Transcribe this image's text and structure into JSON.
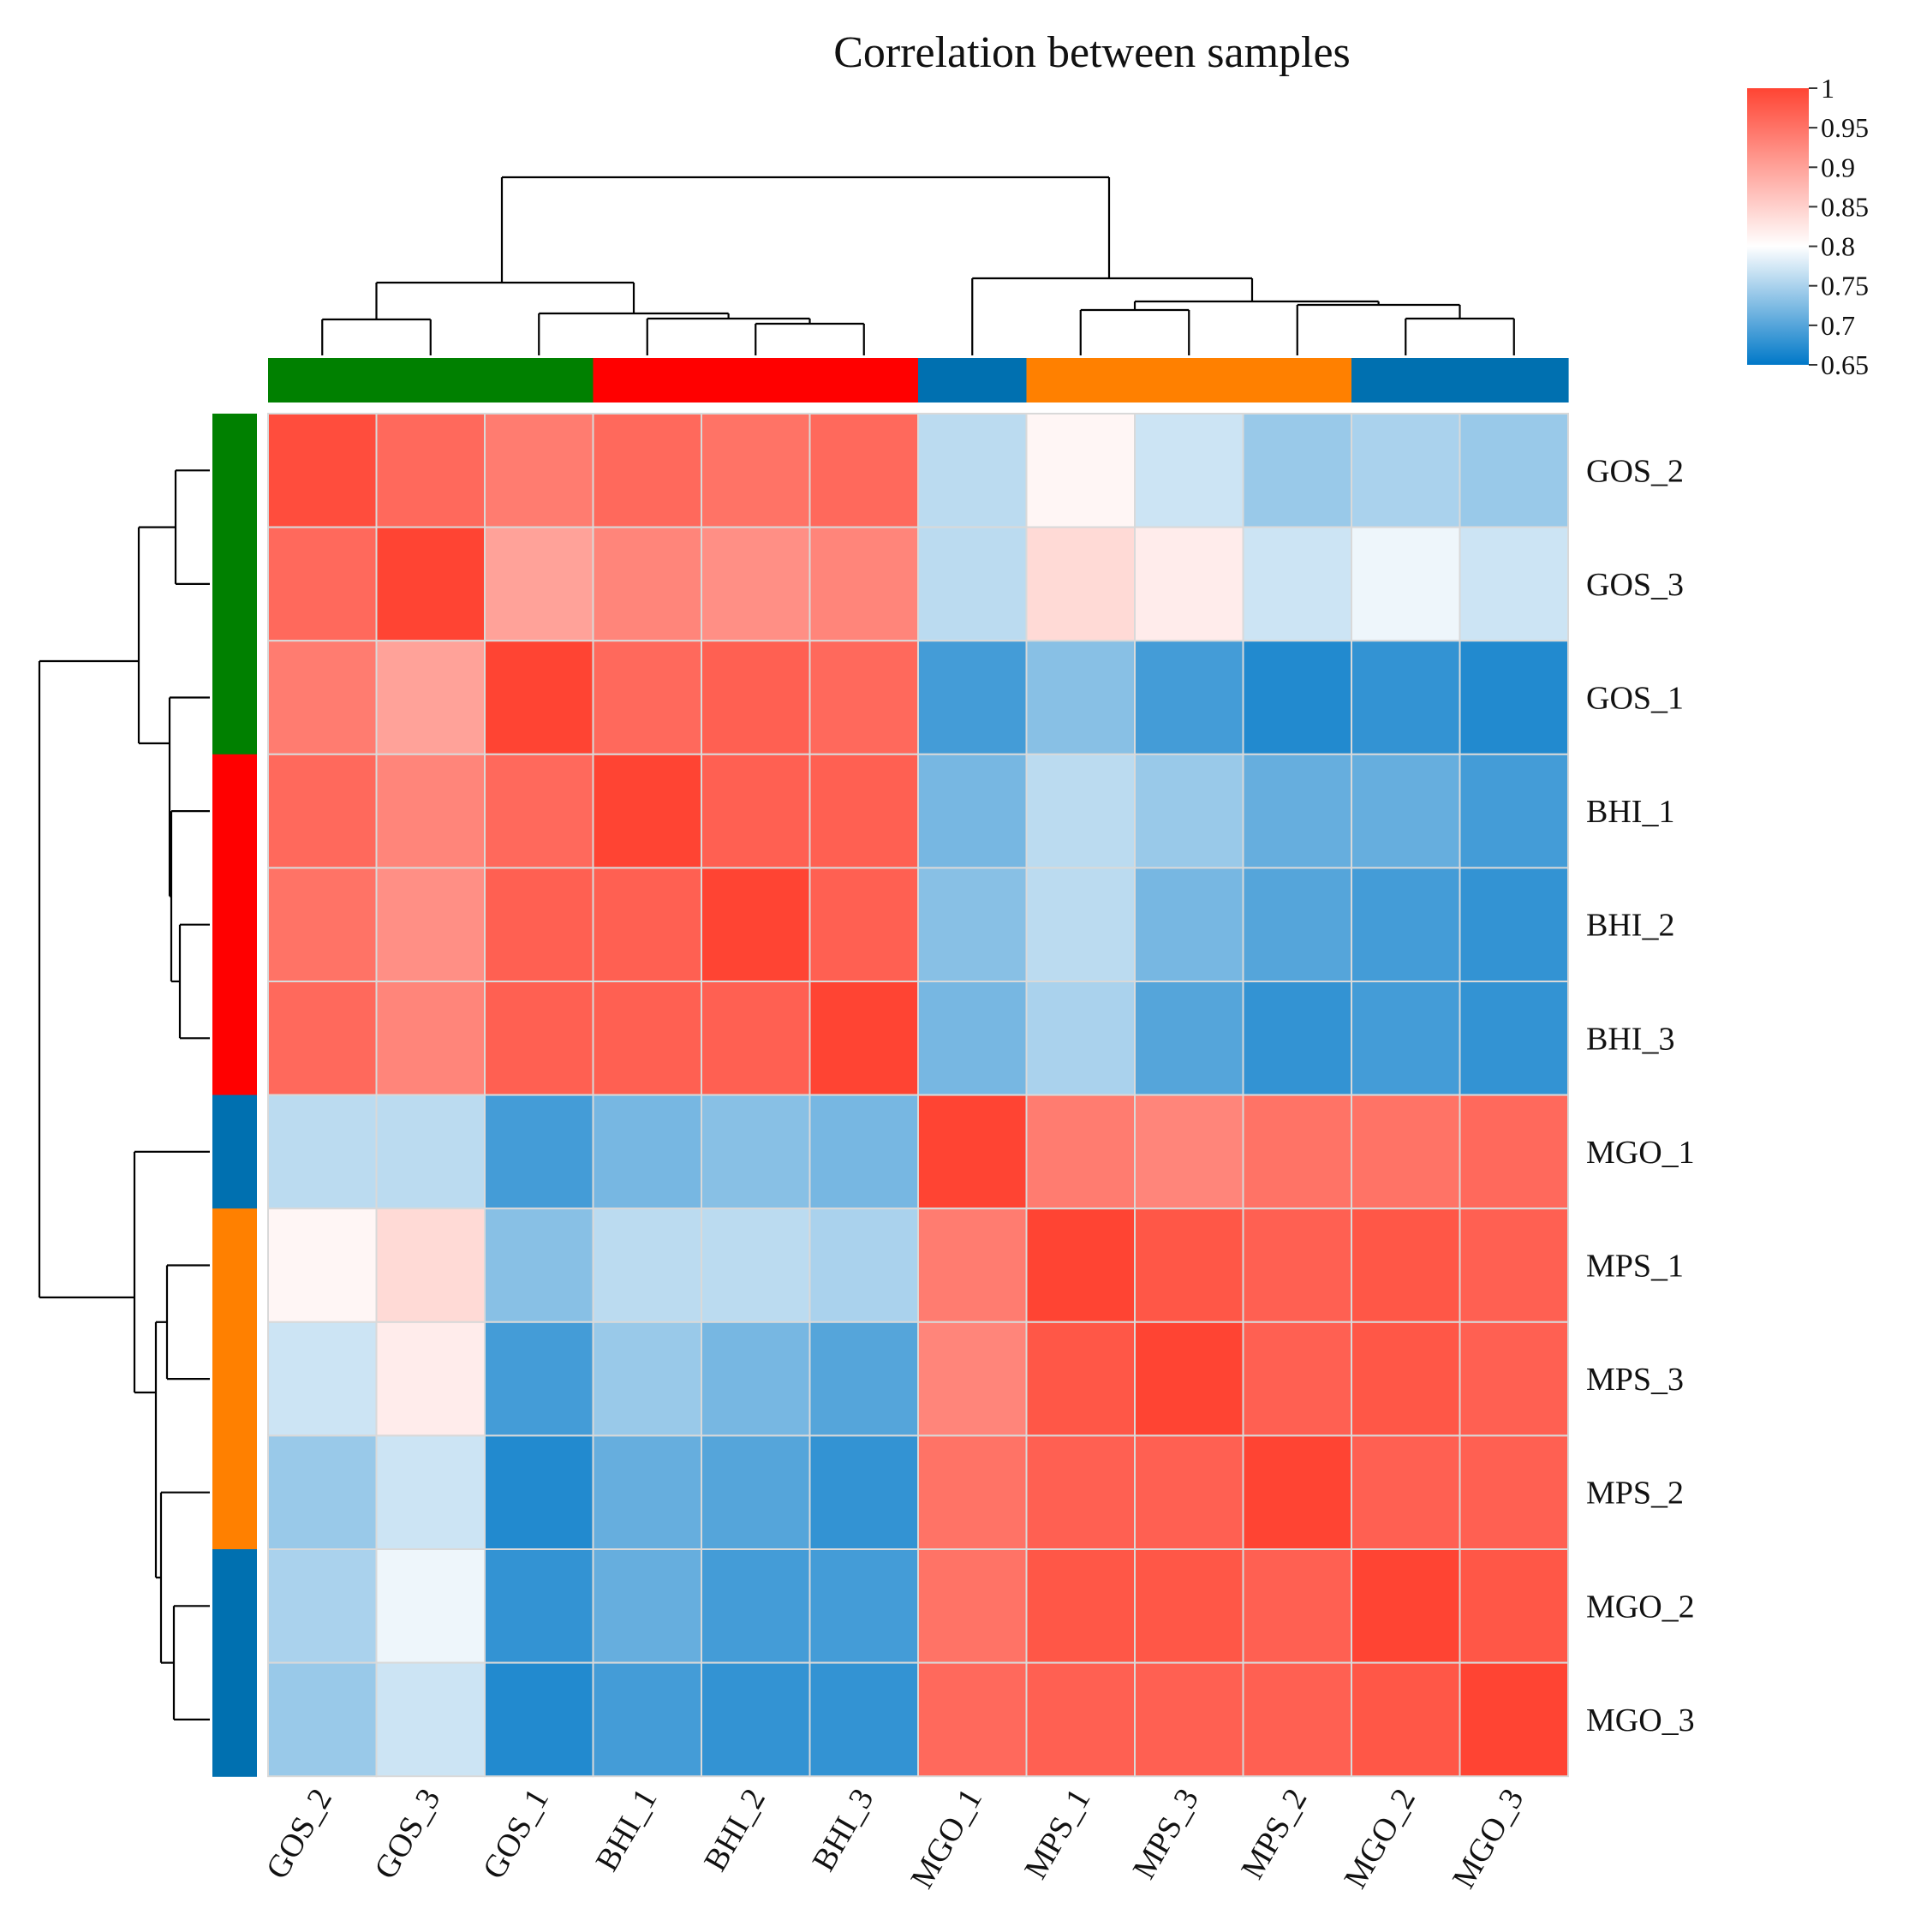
{
  "chart_data": {
    "type": "heatmap",
    "title": "Correlation between samples",
    "rows": [
      "GOS_2",
      "GOS_3",
      "GOS_1",
      "BHI_1",
      "BHI_2",
      "BHI_3",
      "MGO_1",
      "MPS_1",
      "MPS_3",
      "MPS_2",
      "MGO_2",
      "MGO_3"
    ],
    "columns": [
      "GOS_2",
      "GOS_3",
      "GOS_1",
      "BHI_1",
      "BHI_2",
      "BHI_3",
      "MGO_1",
      "MPS_1",
      "MPS_3",
      "MPS_2",
      "MGO_2",
      "MGO_3"
    ],
    "values": [
      [
        0.99,
        0.96,
        0.94,
        0.96,
        0.95,
        0.96,
        0.76,
        0.81,
        0.77,
        0.74,
        0.75,
        0.74
      ],
      [
        0.96,
        1.0,
        0.9,
        0.93,
        0.92,
        0.93,
        0.76,
        0.84,
        0.82,
        0.77,
        0.79,
        0.77
      ],
      [
        0.94,
        0.9,
        1.0,
        0.96,
        0.97,
        0.96,
        0.69,
        0.73,
        0.69,
        0.67,
        0.68,
        0.67
      ],
      [
        0.96,
        0.93,
        0.96,
        1.0,
        0.97,
        0.97,
        0.72,
        0.76,
        0.74,
        0.71,
        0.71,
        0.69
      ],
      [
        0.95,
        0.92,
        0.97,
        0.97,
        1.0,
        0.97,
        0.73,
        0.76,
        0.72,
        0.7,
        0.69,
        0.68
      ],
      [
        0.96,
        0.93,
        0.97,
        0.97,
        0.97,
        1.0,
        0.72,
        0.75,
        0.7,
        0.68,
        0.69,
        0.68
      ],
      [
        0.76,
        0.76,
        0.69,
        0.72,
        0.73,
        0.72,
        1.0,
        0.94,
        0.93,
        0.95,
        0.95,
        0.96
      ],
      [
        0.81,
        0.84,
        0.73,
        0.76,
        0.76,
        0.75,
        0.94,
        1.0,
        0.98,
        0.97,
        0.98,
        0.97
      ],
      [
        0.77,
        0.82,
        0.69,
        0.74,
        0.72,
        0.7,
        0.93,
        0.98,
        1.0,
        0.97,
        0.98,
        0.97
      ],
      [
        0.74,
        0.77,
        0.67,
        0.71,
        0.7,
        0.68,
        0.95,
        0.97,
        0.97,
        1.0,
        0.97,
        0.97
      ],
      [
        0.75,
        0.79,
        0.68,
        0.71,
        0.69,
        0.69,
        0.95,
        0.98,
        0.98,
        0.97,
        1.0,
        0.98
      ],
      [
        0.74,
        0.77,
        0.67,
        0.69,
        0.68,
        0.68,
        0.96,
        0.97,
        0.97,
        0.97,
        0.98,
        1.0
      ]
    ],
    "groups": [
      "GOS",
      "GOS",
      "GOS",
      "BHI",
      "BHI",
      "BHI",
      "MGO",
      "MPS",
      "MPS",
      "MPS",
      "MGO",
      "MGO"
    ],
    "group_colors": {
      "GOS": "#008000",
      "BHI": "#ff0000",
      "MGO": "#0070b0",
      "MPS": "#ff8000"
    },
    "colorbar": {
      "min": 0.65,
      "max": 1,
      "ticks": [
        "1",
        "0.95",
        "0.9",
        "0.85",
        "0.8",
        "0.75",
        "0.7",
        "0.65"
      ],
      "colors": [
        "#0078c8",
        "#ffffff",
        "#ff4433"
      ],
      "mid": 0.8
    },
    "cell_border_color": "#d9d9d9",
    "legend_position": "top-right",
    "dendrogram": "both rows and columns"
  }
}
